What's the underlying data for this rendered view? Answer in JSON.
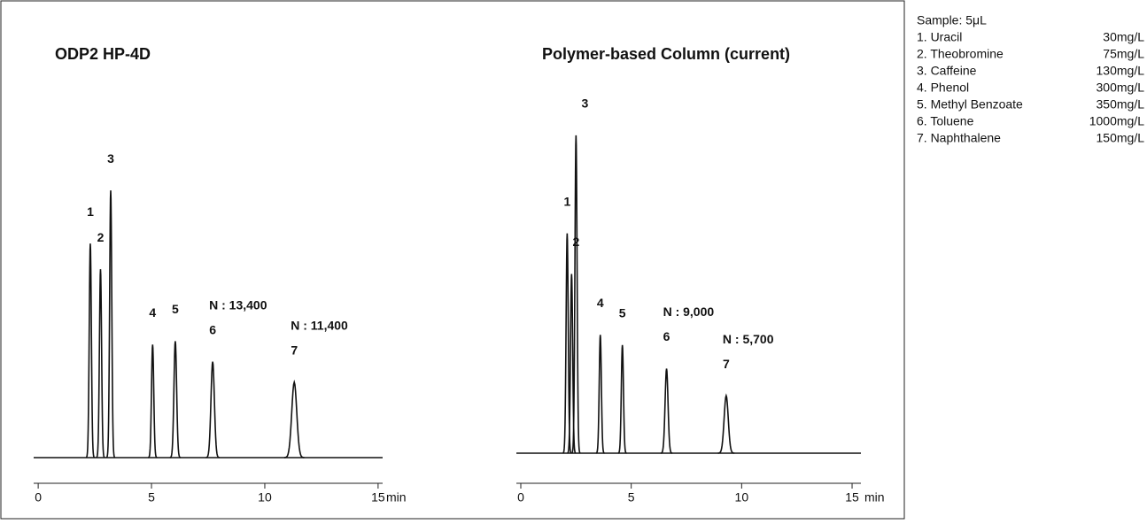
{
  "chart_data": [
    {
      "type": "chromatogram",
      "title": "ODP2 HP-4D",
      "xlabel": "min",
      "xlim": [
        -0.2,
        15.2
      ],
      "xticks": [
        0,
        5,
        10,
        15
      ],
      "ylim": [
        0,
        100
      ],
      "color": "#111111",
      "peaks": [
        {
          "label": "1",
          "x": 2.3,
          "y": 62.5
        },
        {
          "label": "2",
          "x": 2.75,
          "y": 55
        },
        {
          "label": "3",
          "x": 3.2,
          "y": 78
        },
        {
          "label": "4",
          "x": 5.05,
          "y": 33
        },
        {
          "label": "5",
          "x": 6.05,
          "y": 34
        },
        {
          "label": "6",
          "x": 7.7,
          "y": 28,
          "annotation": "N : 13,400"
        },
        {
          "label": "7",
          "x": 11.3,
          "y": 22,
          "annotation": "N : 11,400"
        }
      ]
    },
    {
      "type": "chromatogram",
      "title": "Polymer-based Column (current)",
      "xlabel": "min",
      "xlim": [
        -0.2,
        15.4
      ],
      "xticks": [
        0,
        5,
        10,
        15
      ],
      "ylim": [
        0,
        100
      ],
      "color": "#111111",
      "peaks": [
        {
          "label": "1",
          "x": 2.1,
          "y": 65
        },
        {
          "label": "2",
          "x": 2.3,
          "y": 53
        },
        {
          "label": "3",
          "x": 2.5,
          "y": 94
        },
        {
          "label": "4",
          "x": 3.6,
          "y": 35
        },
        {
          "label": "5",
          "x": 4.6,
          "y": 32
        },
        {
          "label": "6",
          "x": 6.6,
          "y": 25,
          "annotation": "N : 9,000"
        },
        {
          "label": "7",
          "x": 9.3,
          "y": 17,
          "annotation": "N : 5,700"
        }
      ]
    }
  ],
  "sample_info": {
    "title": "Sample: 5μL",
    "items": [
      {
        "name": "1. Uracil",
        "amount": "30mg/L"
      },
      {
        "name": "2. Theobromine",
        "amount": "75mg/L"
      },
      {
        "name": "3. Caffeine",
        "amount": "130mg/L"
      },
      {
        "name": "4. Phenol",
        "amount": "300mg/L"
      },
      {
        "name": "5. Methyl Benzoate",
        "amount": "350mg/L"
      },
      {
        "name": "6. Toluene",
        "amount": "1000mg/L"
      },
      {
        "name": "7. Naphthalene",
        "amount": "150mg/L"
      }
    ]
  }
}
